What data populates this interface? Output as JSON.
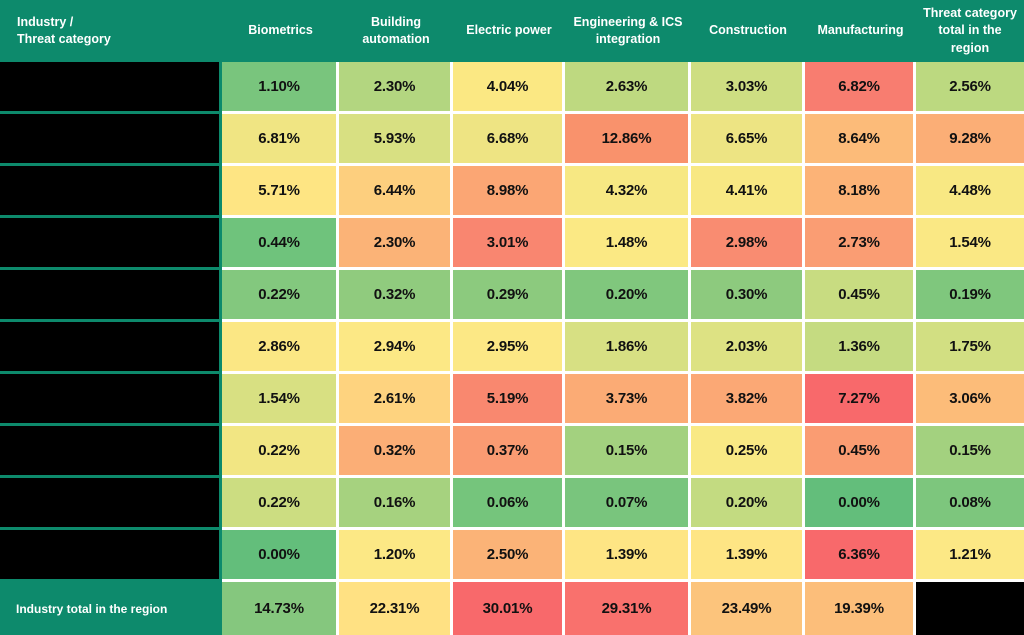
{
  "meta": {
    "accent_teal": "#0D8A6C",
    "row_label_bg": "#000000",
    "gridline_color": "#FFFFFF",
    "value_text_color": "#111111",
    "header_text_color": "#FFFFFF"
  },
  "table": {
    "corner": "Industry /\nThreat category",
    "columns": [
      "Biometrics",
      "Building automation",
      "Electric power",
      "Engineering & ICS integration",
      "Construction",
      "Manufacturing",
      "Threat category total in the region"
    ],
    "rows": [
      {
        "label": "",
        "redacted": true,
        "cells": [
          {
            "v": "1.10%",
            "c": "#79C57D"
          },
          {
            "v": "2.30%",
            "c": "#B3D680"
          },
          {
            "v": "4.04%",
            "c": "#FBE883"
          },
          {
            "v": "2.63%",
            "c": "#BED980"
          },
          {
            "v": "3.03%",
            "c": "#CEDE82"
          },
          {
            "v": "6.82%",
            "c": "#F87D70"
          },
          {
            "v": "2.56%",
            "c": "#BCD980"
          }
        ]
      },
      {
        "label": "",
        "redacted": true,
        "cells": [
          {
            "v": "6.81%",
            "c": "#F0E583"
          },
          {
            "v": "5.93%",
            "c": "#D8E082"
          },
          {
            "v": "6.68%",
            "c": "#EEE483"
          },
          {
            "v": "12.86%",
            "c": "#F9926C"
          },
          {
            "v": "6.65%",
            "c": "#EDE483"
          },
          {
            "v": "8.64%",
            "c": "#FCBB79"
          },
          {
            "v": "9.28%",
            "c": "#FBAE76"
          }
        ]
      },
      {
        "label": "",
        "redacted": true,
        "cells": [
          {
            "v": "5.71%",
            "c": "#FEE583"
          },
          {
            "v": "6.44%",
            "c": "#FDCF7E"
          },
          {
            "v": "8.98%",
            "c": "#FBA674"
          },
          {
            "v": "4.32%",
            "c": "#F7E883"
          },
          {
            "v": "4.41%",
            "c": "#F8E883"
          },
          {
            "v": "8.18%",
            "c": "#FCB377"
          },
          {
            "v": "4.48%",
            "c": "#F8E883"
          }
        ]
      },
      {
        "label": "",
        "redacted": true,
        "cells": [
          {
            "v": "0.44%",
            "c": "#6FC37C"
          },
          {
            "v": "2.30%",
            "c": "#FBB377"
          },
          {
            "v": "3.01%",
            "c": "#F98670"
          },
          {
            "v": "1.48%",
            "c": "#FBE984"
          },
          {
            "v": "2.98%",
            "c": "#F98C71"
          },
          {
            "v": "2.73%",
            "c": "#FA9D73"
          },
          {
            "v": "1.54%",
            "c": "#FAE884"
          }
        ]
      },
      {
        "label": "",
        "redacted": true,
        "cells": [
          {
            "v": "0.22%",
            "c": "#83C87E"
          },
          {
            "v": "0.32%",
            "c": "#90CB7E"
          },
          {
            "v": "0.29%",
            "c": "#8CCA7E"
          },
          {
            "v": "0.20%",
            "c": "#80C77D"
          },
          {
            "v": "0.30%",
            "c": "#8DCA7E"
          },
          {
            "v": "0.45%",
            "c": "#C8DC81"
          },
          {
            "v": "0.19%",
            "c": "#7FC77D"
          }
        ]
      },
      {
        "label": "",
        "redacted": true,
        "cells": [
          {
            "v": "2.86%",
            "c": "#FBE784"
          },
          {
            "v": "2.94%",
            "c": "#FCE885"
          },
          {
            "v": "2.95%",
            "c": "#FCE885"
          },
          {
            "v": "1.86%",
            "c": "#D7E083"
          },
          {
            "v": "2.03%",
            "c": "#DDE283"
          },
          {
            "v": "1.36%",
            "c": "#C5DB81"
          },
          {
            "v": "1.75%",
            "c": "#D2DF82"
          }
        ]
      },
      {
        "label": "",
        "redacted": true,
        "cells": [
          {
            "v": "1.54%",
            "c": "#D8E082"
          },
          {
            "v": "2.61%",
            "c": "#FED37F"
          },
          {
            "v": "5.19%",
            "c": "#F9886F"
          },
          {
            "v": "3.73%",
            "c": "#FBAB75"
          },
          {
            "v": "3.82%",
            "c": "#FBA875"
          },
          {
            "v": "7.27%",
            "c": "#F8696B"
          },
          {
            "v": "3.06%",
            "c": "#FCBC79"
          }
        ]
      },
      {
        "label": "",
        "redacted": true,
        "cells": [
          {
            "v": "0.22%",
            "c": "#F2E683"
          },
          {
            "v": "0.32%",
            "c": "#FBAE76"
          },
          {
            "v": "0.37%",
            "c": "#FA9B72"
          },
          {
            "v": "0.15%",
            "c": "#A3D17F"
          },
          {
            "v": "0.25%",
            "c": "#F9E984"
          },
          {
            "v": "0.45%",
            "c": "#FA9C72"
          },
          {
            "v": "0.15%",
            "c": "#A3D17F"
          }
        ]
      },
      {
        "label": "",
        "redacted": true,
        "cells": [
          {
            "v": "0.22%",
            "c": "#CCDD81"
          },
          {
            "v": "0.16%",
            "c": "#A6D27F"
          },
          {
            "v": "0.06%",
            "c": "#75C57C"
          },
          {
            "v": "0.07%",
            "c": "#79C57D"
          },
          {
            "v": "0.20%",
            "c": "#C3DB81"
          },
          {
            "v": "0.00%",
            "c": "#63BE7B"
          },
          {
            "v": "0.08%",
            "c": "#7DC67D"
          }
        ]
      },
      {
        "label": "",
        "redacted": true,
        "cells": [
          {
            "v": "0.00%",
            "c": "#63BE7B"
          },
          {
            "v": "1.20%",
            "c": "#FCE885"
          },
          {
            "v": "2.50%",
            "c": "#FBB377"
          },
          {
            "v": "1.39%",
            "c": "#FEE584"
          },
          {
            "v": "1.39%",
            "c": "#FEE584"
          },
          {
            "v": "6.36%",
            "c": "#F8696B"
          },
          {
            "v": "1.21%",
            "c": "#FCE885"
          }
        ]
      }
    ],
    "total_row": {
      "label": "Industry total in the region",
      "cells": [
        {
          "v": "14.73%",
          "c": "#85C77E"
        },
        {
          "v": "22.31%",
          "c": "#FFE183"
        },
        {
          "v": "30.01%",
          "c": "#F8696B"
        },
        {
          "v": "29.31%",
          "c": "#F9716D"
        },
        {
          "v": "23.49%",
          "c": "#FCC47C"
        },
        {
          "v": "19.39%",
          "c": "#FCBE7A"
        }
      ],
      "last_cell_blacked_out": true
    }
  },
  "chart_data": {
    "type": "heatmap",
    "title": "Industry / Threat category",
    "columns": [
      "Biometrics",
      "Building automation",
      "Electric power",
      "Engineering & ICS integration",
      "Construction",
      "Manufacturing",
      "Threat category total in the region"
    ],
    "row_labels": [
      "[redacted]",
      "[redacted]",
      "[redacted]",
      "[redacted]",
      "[redacted]",
      "[redacted]",
      "[redacted]",
      "[redacted]",
      "[redacted]",
      "[redacted]"
    ],
    "values_percent": [
      [
        1.1,
        2.3,
        4.04,
        2.63,
        3.03,
        6.82,
        2.56
      ],
      [
        6.81,
        5.93,
        6.68,
        12.86,
        6.65,
        8.64,
        9.28
      ],
      [
        5.71,
        6.44,
        8.98,
        4.32,
        4.41,
        8.18,
        4.48
      ],
      [
        0.44,
        2.3,
        3.01,
        1.48,
        2.98,
        2.73,
        1.54
      ],
      [
        0.22,
        0.32,
        0.29,
        0.2,
        0.3,
        0.45,
        0.19
      ],
      [
        2.86,
        2.94,
        2.95,
        1.86,
        2.03,
        1.36,
        1.75
      ],
      [
        1.54,
        2.61,
        5.19,
        3.73,
        3.82,
        7.27,
        3.06
      ],
      [
        0.22,
        0.32,
        0.37,
        0.15,
        0.25,
        0.45,
        0.15
      ],
      [
        0.22,
        0.16,
        0.06,
        0.07,
        0.2,
        0.0,
        0.08
      ],
      [
        0.0,
        1.2,
        2.5,
        1.39,
        1.39,
        6.36,
        1.21
      ]
    ],
    "industry_total_row": {
      "label": "Industry total in the region",
      "values_percent": [
        14.73,
        22.31,
        30.01,
        29.31,
        23.49,
        19.39
      ]
    },
    "color_scale": {
      "low": "#63BE7B",
      "mid": "#FFEB84",
      "high": "#F8696B"
    },
    "legend": "none",
    "grid": "white gridlines between cells"
  }
}
